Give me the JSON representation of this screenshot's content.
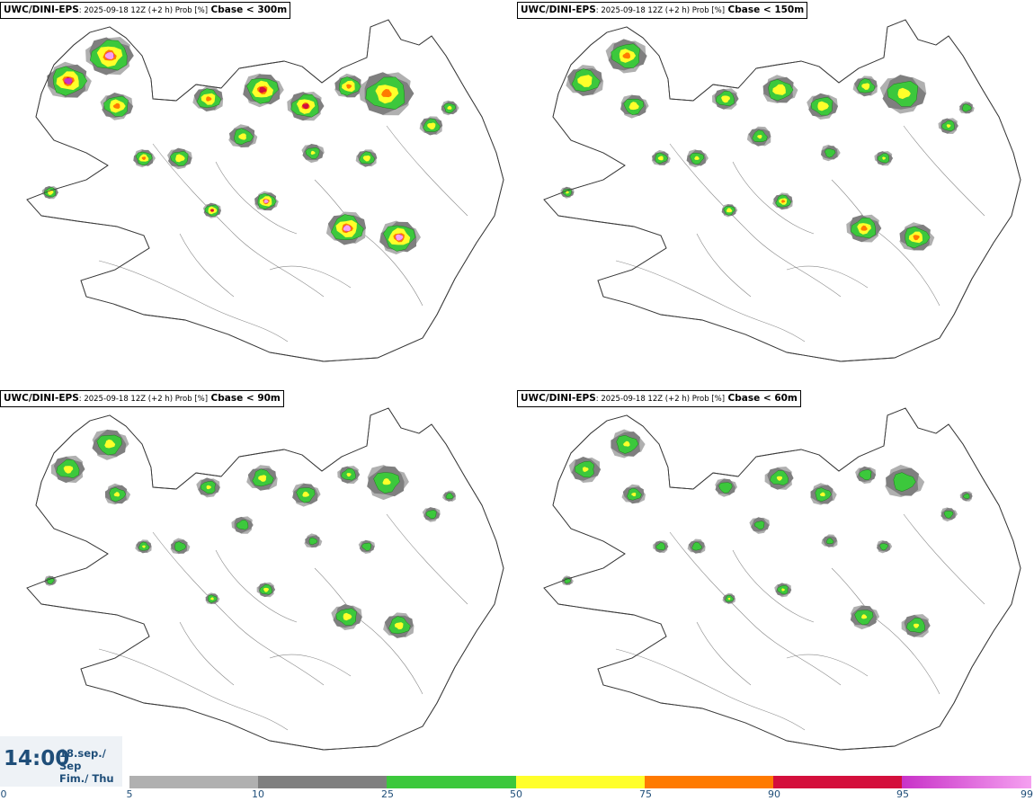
{
  "panels": [
    {
      "model": "UWC/DINI-EPS",
      "meta": ": 2025-09-18 12Z (+2 h) Prob [%]",
      "param": "Cbase < 300m",
      "intensity": 1.0
    },
    {
      "model": "UWC/DINI-EPS",
      "meta": ": 2025-09-18 12Z (+2 h) Prob [%]",
      "param": "Cbase < 150m",
      "intensity": 0.72
    },
    {
      "model": "UWC/DINI-EPS",
      "meta": ": 2025-09-18 12Z (+2 h) Prob [%]",
      "param": "Cbase < 90m",
      "intensity": 0.55
    },
    {
      "model": "UWC/DINI-EPS",
      "meta": ": 2025-09-18 12Z (+2 h) Prob [%]",
      "param": "Cbase < 60m",
      "intensity": 0.45
    }
  ],
  "valid_time": {
    "time": "14:00",
    "date_line": "18.sep./ Sep",
    "day_line": "Fim./ Thu"
  },
  "legend": {
    "segments": [
      {
        "from": 5,
        "to": 10,
        "color": "#b0b0b0"
      },
      {
        "from": 10,
        "to": 25,
        "color": "#7f7f7f"
      },
      {
        "from": 25,
        "to": 50,
        "color": "#3cc83c"
      },
      {
        "from": 50,
        "to": 75,
        "color": "#ffff2a"
      },
      {
        "from": 75,
        "to": 90,
        "color": "#ff7a00"
      },
      {
        "from": 90,
        "to": 95,
        "color": "#d40f3c"
      },
      {
        "from": 95,
        "to": 99,
        "color": "#c832c8"
      }
    ],
    "end_color": "#f5a0f0",
    "labels": [
      "0",
      "5",
      "10",
      "25",
      "50",
      "75",
      "90",
      "95",
      "99"
    ]
  },
  "colors": {
    "coast": "#3a3a3a",
    "text": "#1f4e79"
  }
}
